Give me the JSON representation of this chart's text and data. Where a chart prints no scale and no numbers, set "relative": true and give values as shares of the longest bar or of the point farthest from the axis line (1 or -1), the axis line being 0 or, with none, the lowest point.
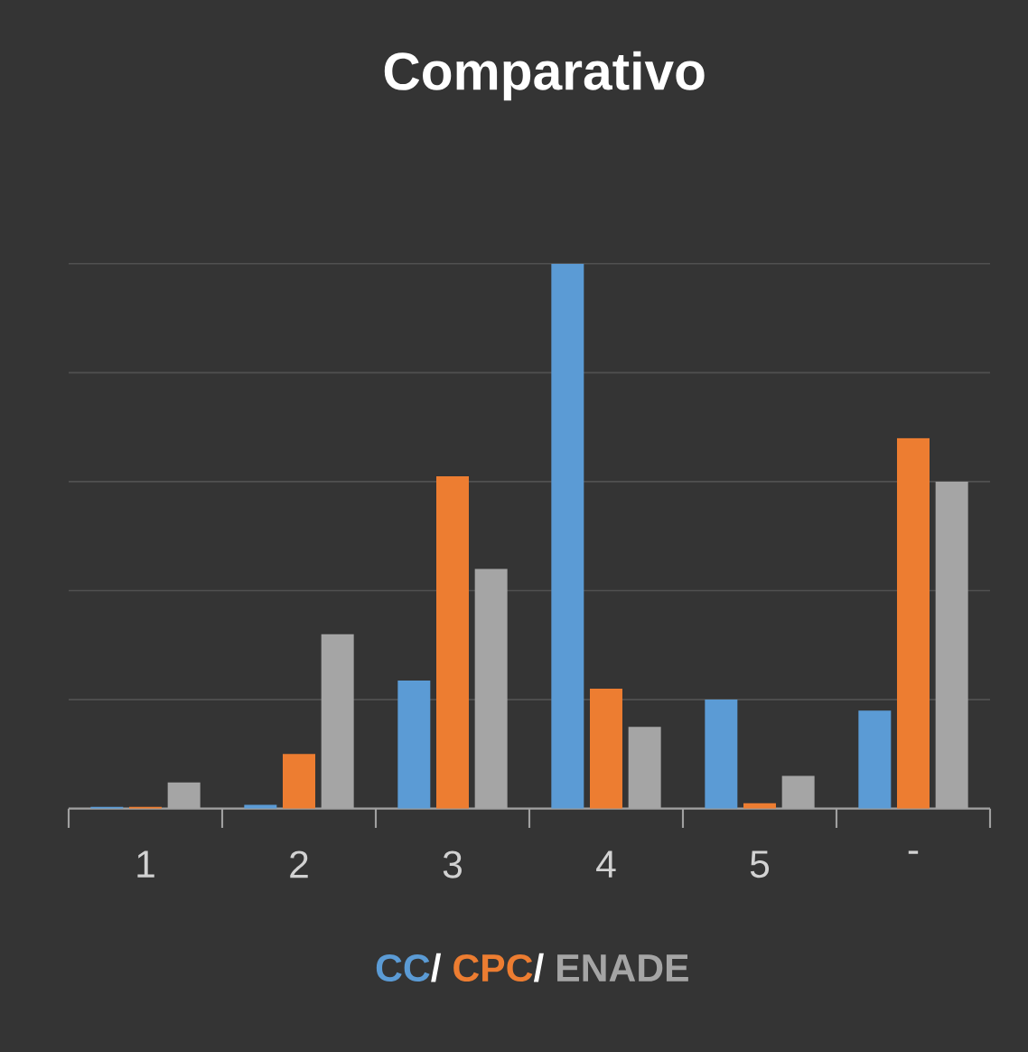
{
  "chart_data": {
    "type": "bar",
    "title": "Comparativo",
    "relative": true,
    "grid": "y",
    "legend": "bottom",
    "annotations": [
      "/",
      "/"
    ],
    "categories": [
      "1",
      "2",
      "3",
      "4",
      "5",
      "-"
    ],
    "series": [
      {
        "name": "CC",
        "color": "#5b9bd5",
        "values": [
          0.003,
          0.007,
          0.235,
          1,
          0.2,
          0.18
        ]
      },
      {
        "name": "CPC",
        "color": "#ed7d31",
        "values": [
          0.003,
          0.1,
          0.61,
          0.22,
          0.01,
          0.68
        ]
      },
      {
        "name": "ENADE",
        "color": "#a5a5a5",
        "values": [
          0.048,
          0.32,
          0.44,
          0.15,
          0.06,
          0.6
        ]
      }
    ]
  }
}
